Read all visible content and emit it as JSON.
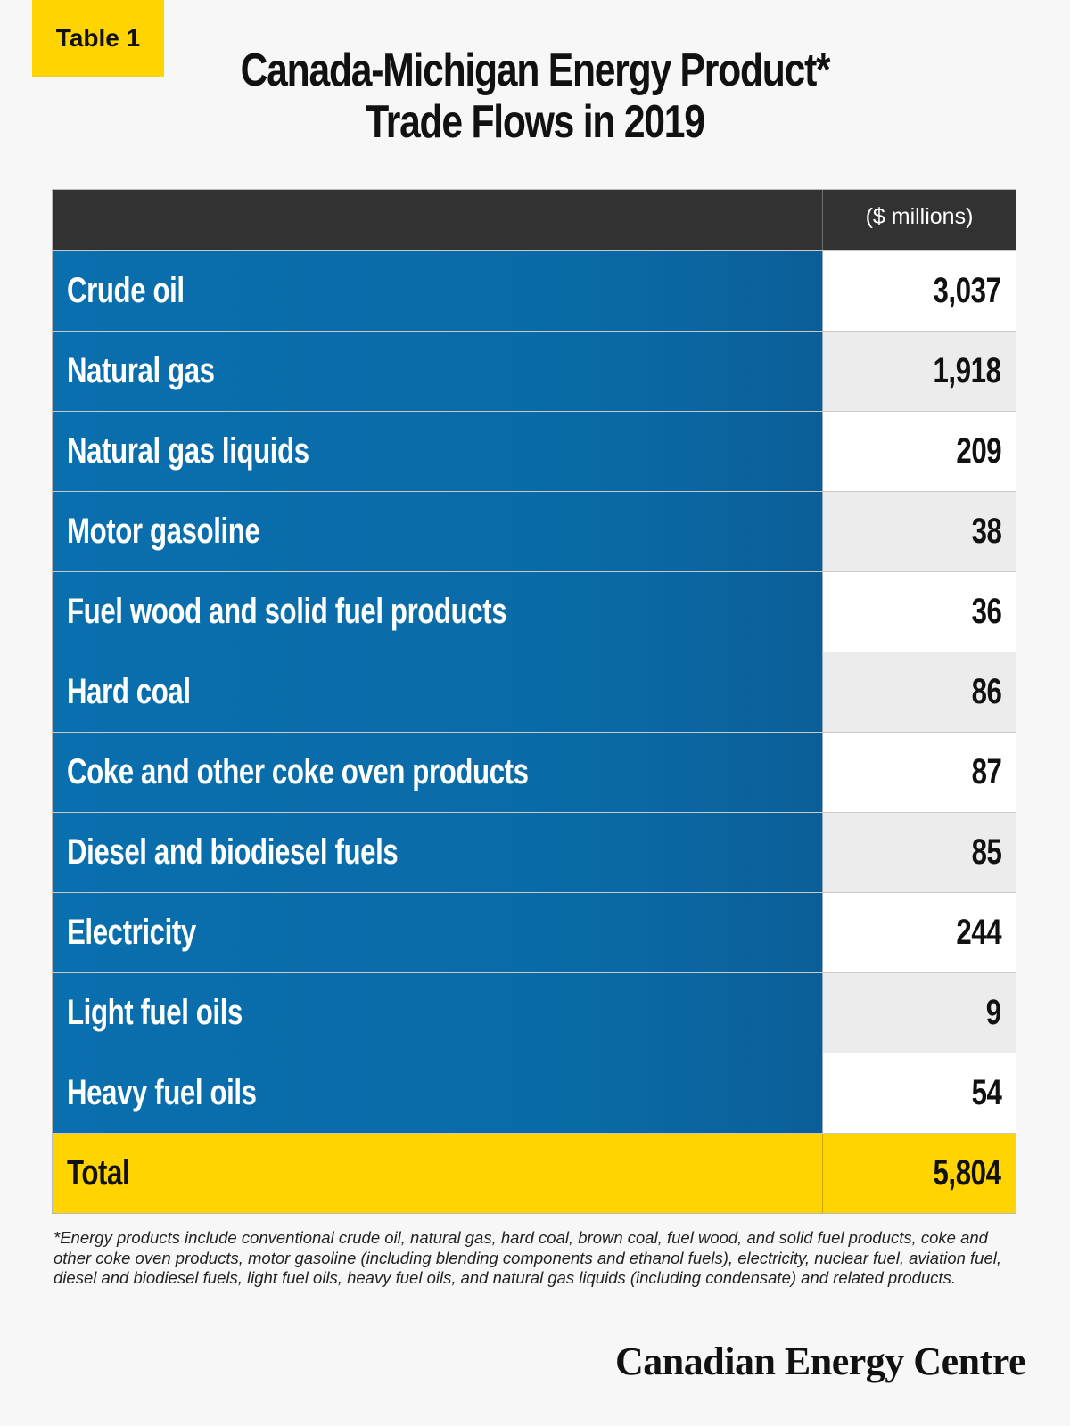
{
  "badge": "Table 1",
  "title": {
    "line1": "Canada-Michigan Energy Product*",
    "line2": "Trade Flows in 2019"
  },
  "chart_data": {
    "type": "table",
    "title": "Canada-Michigan Energy Product* Trade Flows in 2019",
    "unit_label": "($ millions)",
    "rows": [
      {
        "label": "Crude oil",
        "value": "3,037"
      },
      {
        "label": "Natural gas",
        "value": "1,918"
      },
      {
        "label": "Natural gas liquids",
        "value": "209"
      },
      {
        "label": "Motor gasoline",
        "value": "38"
      },
      {
        "label": "Fuel wood and solid fuel products",
        "value": "36"
      },
      {
        "label": "Hard coal",
        "value": "86"
      },
      {
        "label": "Coke and other coke oven products",
        "value": "87"
      },
      {
        "label": "Diesel and biodiesel fuels",
        "value": "85"
      },
      {
        "label": "Electricity",
        "value": "244"
      },
      {
        "label": "Light fuel oils",
        "value": "9"
      },
      {
        "label": "Heavy fuel oils",
        "value": "54"
      }
    ],
    "total": {
      "label": "Total",
      "value": "5,804"
    }
  },
  "footnote": "*Energy products include conventional crude oil, natural gas, hard coal, brown coal, fuel wood, and solid fuel products, coke and other coke oven products, motor gasoline (including blending components and ethanol fuels), electricity, nuclear fuel, aviation fuel, diesel and biodiesel fuels, light fuel oils, heavy fuel oils, and natural gas liquids (including condensate) and related products.",
  "brand": "Canadian Energy Centre",
  "colors": {
    "accent_yellow": "#ffd400",
    "row_blue": "#0a6aa6",
    "header_dark": "#323232"
  }
}
